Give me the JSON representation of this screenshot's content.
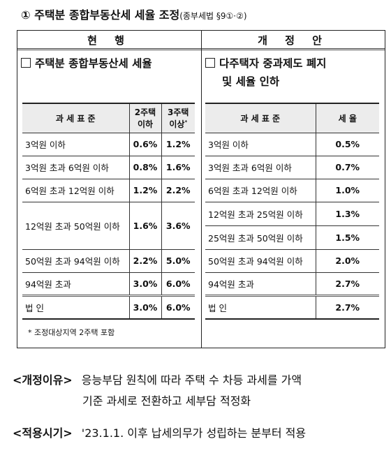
{
  "title": {
    "main": "① 주택분 종합부동산세 세율 조정",
    "ref": "(종부세법 §9①·②)"
  },
  "headers": {
    "current": "현 행",
    "revised": "개 정 안"
  },
  "current": {
    "title": "주택분 종합부동산세 세율",
    "table": {
      "col_base": "과 세 표 준",
      "col_2": [
        "2주택",
        "이하"
      ],
      "col_3": [
        "3주택",
        "이상"
      ],
      "col_3_sup": "*",
      "rows": [
        {
          "base": "3억원 이하",
          "r2": "0.6%",
          "r3": "1.2%"
        },
        {
          "base": "3억원 초과 6억원 이하",
          "r2": "0.8%",
          "r3": "1.6%"
        },
        {
          "base": "6억원 초과 12억원 이하",
          "r2": "1.2%",
          "r3": "2.2%"
        },
        {
          "base": "12억원 초과 50억원 이하",
          "r2": "1.6%",
          "r3": "3.6%"
        },
        {
          "base": "50억원 초과 94억원 이하",
          "r2": "2.2%",
          "r3": "5.0%"
        },
        {
          "base": "94억원 초과",
          "r2": "3.0%",
          "r3": "6.0%"
        },
        {
          "base": "법 인",
          "r2": "3.0%",
          "r3": "6.0%"
        }
      ]
    },
    "note": "* 조정대상지역 2주택 포함"
  },
  "revised": {
    "title_line1": "다주택자 중과제도 폐지",
    "title_line2": "및 세율 인하",
    "table": {
      "col_base": "과 세 표 준",
      "col_rate": "세 율",
      "rows": [
        {
          "base": "3억원 이하",
          "rate": "0.5%"
        },
        {
          "base": "3억원 초과 6억원 이하",
          "rate": "0.7%"
        },
        {
          "base": "6억원 초과 12억원 이하",
          "rate": "1.0%"
        },
        {
          "base": "12억원 초과 25억원 이하",
          "rate": "1.3%"
        },
        {
          "base": "25억원 초과 50억원 이하",
          "rate": "1.5%"
        },
        {
          "base": "50억원 초과 94억원 이하",
          "rate": "2.0%"
        },
        {
          "base": "94억원 초과",
          "rate": "2.7%"
        },
        {
          "base": "법 인",
          "rate": "2.7%"
        }
      ]
    }
  },
  "reason": {
    "label": "<개정이유>",
    "line1": "응능부담 원칙에 따라 주택 수 차등 과세를 가액",
    "line2": "기준 과세로 전환하고 세부담 적정화"
  },
  "effective": {
    "label": "<적용시기>",
    "text": "'23.1.1. 이후 납세의무가 성립하는 분부터 적용"
  }
}
